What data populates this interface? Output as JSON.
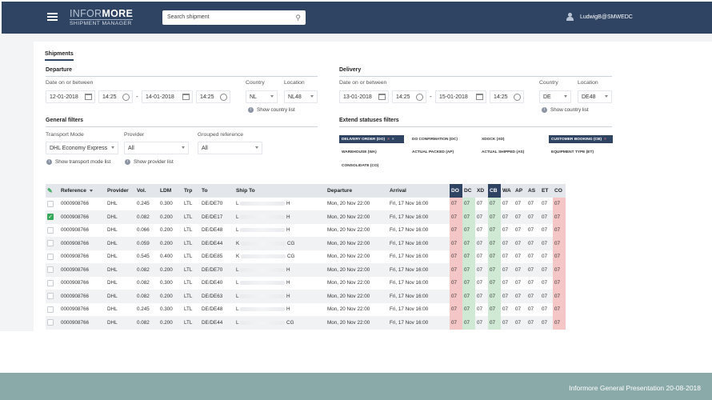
{
  "app": {
    "logo_light": "INFOR",
    "logo_bold": "MORE",
    "logo_sub": "SHIPMENT MANAGER",
    "search_placeholder": "Search shipment",
    "user": "LudwigB@SMWEDC"
  },
  "tab": "Shipments",
  "departure": {
    "title": "Departure",
    "date_label": "Date on or between",
    "date_from": "12-01-2018",
    "time_from": "14:25",
    "date_to": "14-01-2018",
    "time_to": "14:25",
    "country_label": "Country",
    "country": "NL",
    "location_label": "Location",
    "location": "NL48",
    "show_country": "Show country list"
  },
  "delivery": {
    "title": "Delivery",
    "date_label": "Date on or between",
    "date_from": "13-01-2018",
    "time_from": "14:25",
    "date_to": "15-01-2018",
    "time_to": "14:25",
    "country_label": "Country",
    "country": "DE",
    "location_label": "Location",
    "location": "DE48",
    "show_country": "Show country list"
  },
  "general": {
    "title": "General filters",
    "transport_label": "Transport Mode",
    "transport": "DHL Economy Express",
    "provider_label": "Provider",
    "provider": "All",
    "grouped_label": "Grouped reference",
    "grouped": "All",
    "show_transport": "Show transport mode list",
    "show_provider": "Show provider list"
  },
  "statuses": {
    "title": "Extend statuses filters",
    "chips": [
      {
        "label": "DELIVERY ORDER (DO)",
        "selected": true
      },
      {
        "label": "DO CONFIRMATION (DC)",
        "selected": false
      },
      {
        "label": "XDOCK (XD)",
        "selected": false
      },
      {
        "label": "CUSTOMER BOOKING (CB)",
        "selected": true
      },
      {
        "label": "WAREHOUSE (WA)",
        "selected": false
      },
      {
        "label": "ACTUAL PACKED (AP)",
        "selected": false
      },
      {
        "label": "ACTUAL SHIPPED (AS)",
        "selected": false
      },
      {
        "label": "EQUIPMENT TYPE (ET)",
        "selected": false
      },
      {
        "label": "CONSOLIDATE (CO)",
        "selected": false
      }
    ]
  },
  "table": {
    "headers": [
      "Reference",
      "Provider",
      "Vol.",
      "LDM",
      "Trp",
      "To",
      "Ship To",
      "Departure",
      "Arrival",
      "DO",
      "DC",
      "XD",
      "CB",
      "WA",
      "AP",
      "AS",
      "ET",
      "CO"
    ],
    "rows": [
      {
        "ref": "0000908766",
        "provider": "DHL",
        "vol": "0.245",
        "ldm": "0.300",
        "trp": "LTL",
        "to": "DE/DE70",
        "shipto_l": "L",
        "shipto_r": "H",
        "dep": "Mon, 20 Nov 22:00",
        "arr": "Fri, 17 Nov 16:00",
        "checked": false
      },
      {
        "ref": "0000908766",
        "provider": "DHL",
        "vol": "0.082",
        "ldm": "0.200",
        "trp": "LTL",
        "to": "DE/DE17",
        "shipto_l": "L",
        "shipto_r": "H",
        "dep": "Mon, 20 Nov 22:00",
        "arr": "Fri, 17 Nov 16:00",
        "checked": true
      },
      {
        "ref": "0000908766",
        "provider": "DHL",
        "vol": "0.066",
        "ldm": "0.200",
        "trp": "LTL",
        "to": "DE/DE48",
        "shipto_l": "L",
        "shipto_r": "H",
        "dep": "Mon, 20 Nov 22:00",
        "arr": "Fri, 17 Nov 16:00",
        "checked": false
      },
      {
        "ref": "0000908766",
        "provider": "DHL",
        "vol": "0.059",
        "ldm": "0.200",
        "trp": "LTL",
        "to": "DE/DE44",
        "shipto_l": "K",
        "shipto_r": "CG",
        "dep": "Mon, 20 Nov 22:00",
        "arr": "Fri, 17 Nov 16:00",
        "checked": false
      },
      {
        "ref": "0000908766",
        "provider": "DHL",
        "vol": "0.545",
        "ldm": "0.400",
        "trp": "LTL",
        "to": "DE/DE85",
        "shipto_l": "K",
        "shipto_r": "CG",
        "dep": "Mon, 20 Nov 22:00",
        "arr": "Fri, 17 Nov 16:00",
        "checked": false
      },
      {
        "ref": "0000908766",
        "provider": "DHL",
        "vol": "0.082",
        "ldm": "0.200",
        "trp": "LTL",
        "to": "DE/DE70",
        "shipto_l": "L",
        "shipto_r": "H",
        "dep": "Mon, 20 Nov 22:00",
        "arr": "Fri, 17 Nov 16:00",
        "checked": false
      },
      {
        "ref": "0000908766",
        "provider": "DHL",
        "vol": "0.082",
        "ldm": "0.300",
        "trp": "LTL",
        "to": "DE/DE40",
        "shipto_l": "L",
        "shipto_r": "H",
        "dep": "Mon, 20 Nov 22:00",
        "arr": "Fri, 17 Nov 16:00",
        "checked": false
      },
      {
        "ref": "0000908766",
        "provider": "DHL",
        "vol": "0.082",
        "ldm": "0.200",
        "trp": "LTL",
        "to": "DE/DE63",
        "shipto_l": "L",
        "shipto_r": "H",
        "dep": "Mon, 20 Nov 22:00",
        "arr": "Fri, 17 Nov 16:00",
        "checked": false
      },
      {
        "ref": "0000908766",
        "provider": "DHL",
        "vol": "0.245",
        "ldm": "0.300",
        "trp": "LTL",
        "to": "DE/DE48",
        "shipto_l": "L",
        "shipto_r": "H",
        "dep": "Mon, 20 Nov 22:00",
        "arr": "Fri, 17 Nov 16:00",
        "checked": false
      },
      {
        "ref": "0000908766",
        "provider": "DHL",
        "vol": "0.082",
        "ldm": "0.200",
        "trp": "LTL",
        "to": "DE/DE44",
        "shipto_l": "L",
        "shipto_r": "CG",
        "dep": "Mon, 20 Nov 22:00",
        "arr": "Fri, 17 Nov 16:00",
        "checked": false
      }
    ],
    "status_value": "07",
    "status_colors": {
      "DO": "red",
      "DC": "green",
      "CB": "green",
      "CO": "red"
    }
  },
  "footer": "Informore General Presentation 20-08-2018",
  "colors": {
    "brand": "#2f4463",
    "footer": "#8aa9a9",
    "red_cell": "#f5c6c6",
    "green_cell": "#cfe9d5",
    "check": "#36a85b"
  }
}
